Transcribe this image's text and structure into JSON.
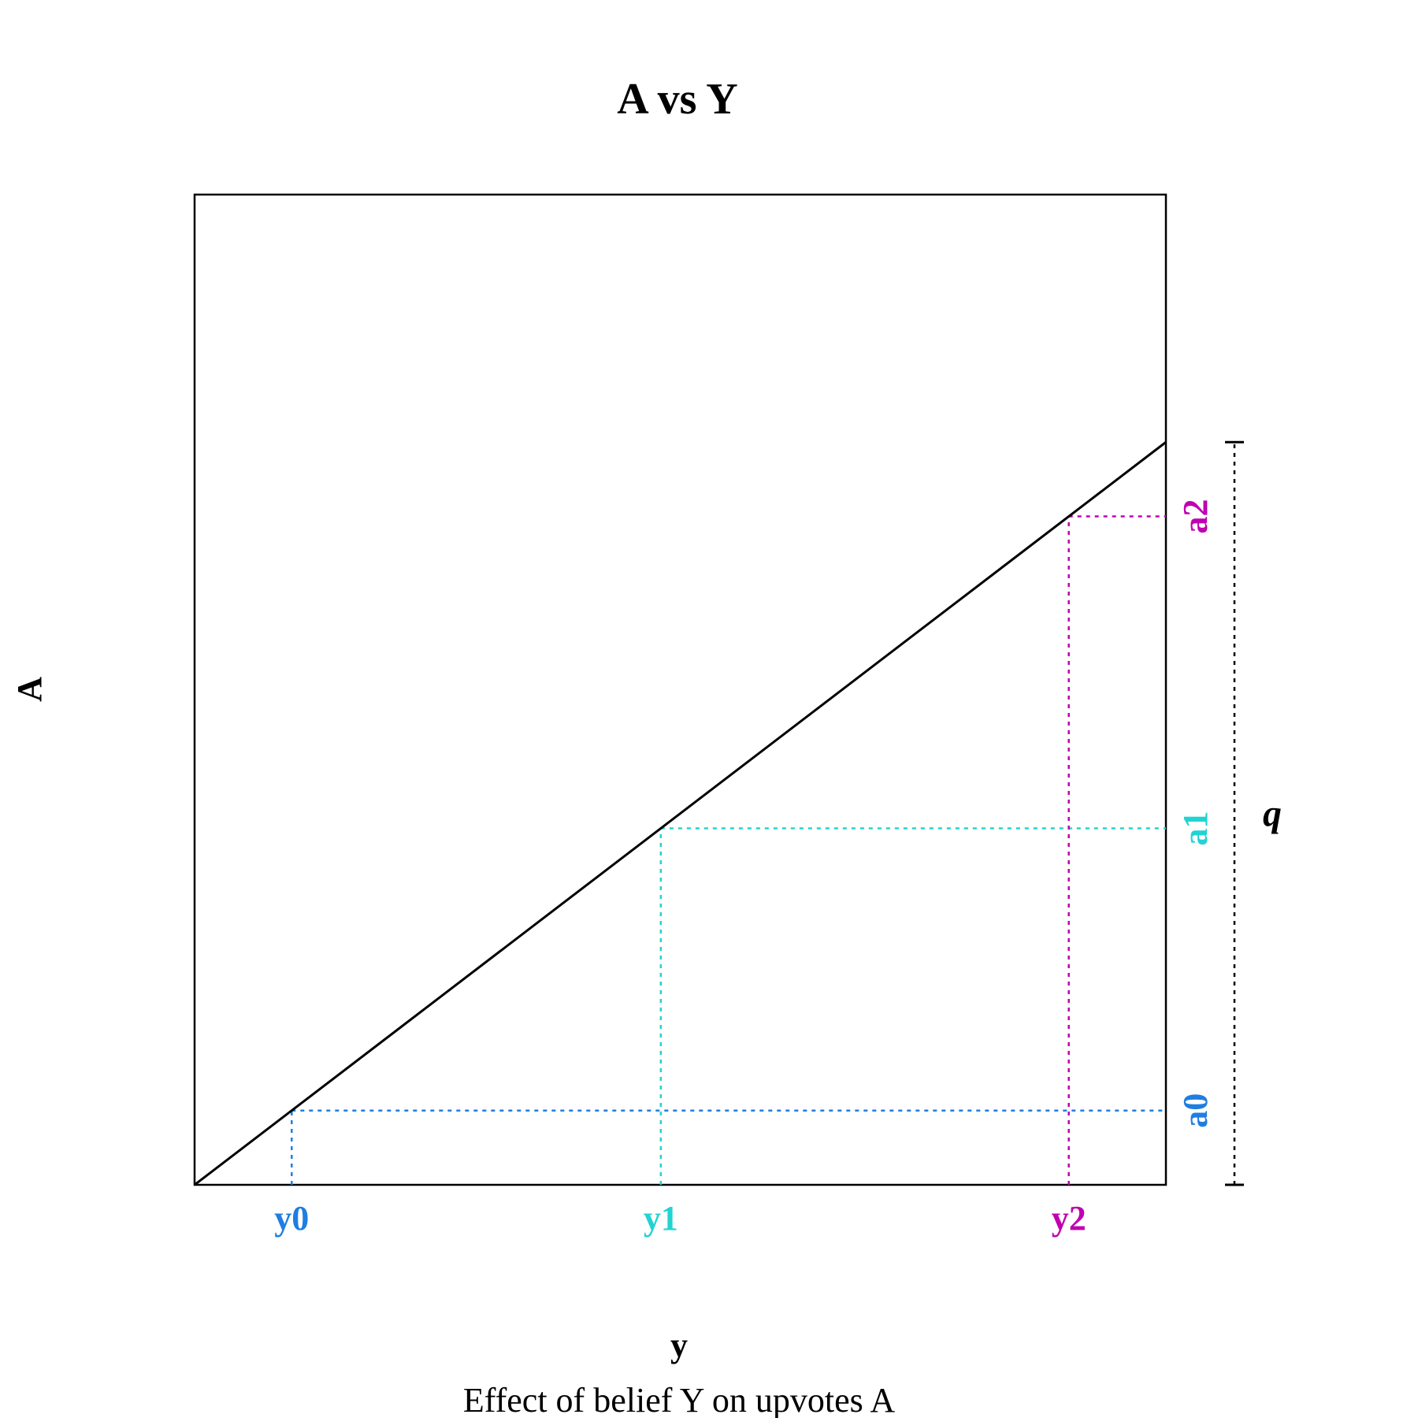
{
  "chart_data": {
    "type": "line",
    "title": "A vs Y",
    "xlabel": "y",
    "ylabel": "A",
    "caption": "Effect of belief Y on upvotes A",
    "xlim": [
      0,
      1
    ],
    "ylim": [
      0,
      1
    ],
    "grid": false,
    "series": [
      {
        "x": [
          0,
          1
        ],
        "y": [
          0,
          0.75
        ]
      }
    ],
    "marked_points": [
      {
        "x_label": "y0",
        "y_label": "a0",
        "x": 0.1,
        "y": 0.075,
        "color": "#1f7ee0"
      },
      {
        "x_label": "y1",
        "y_label": "a1",
        "x": 0.48,
        "y": 0.36,
        "color": "#22d3d3"
      },
      {
        "x_label": "y2",
        "y_label": "a2",
        "x": 0.9,
        "y": 0.675,
        "color": "#c000b0"
      }
    ],
    "bracket": {
      "label": "q",
      "from": 0,
      "to": 0.75
    },
    "colors": {
      "line": "#000000",
      "frame": "#000000",
      "bracket": "#000000"
    }
  }
}
